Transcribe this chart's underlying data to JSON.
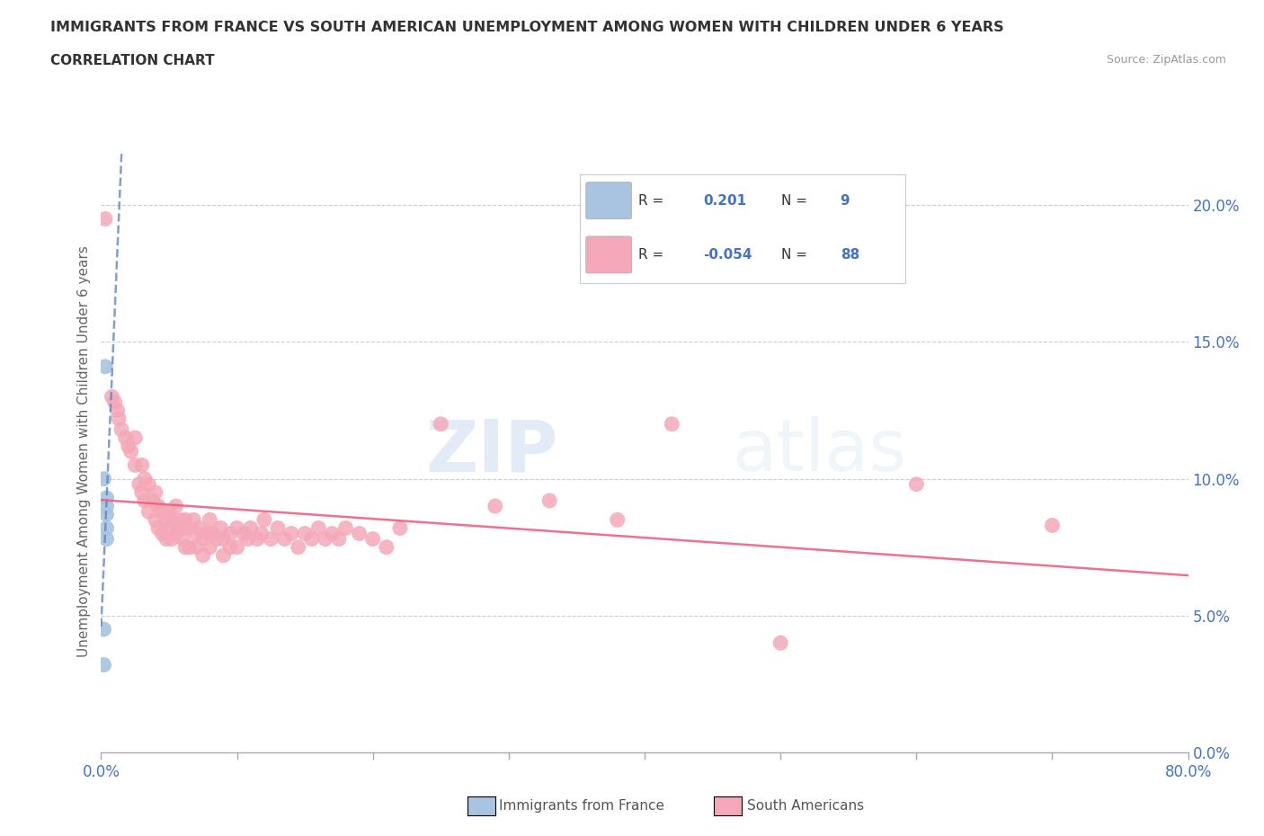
{
  "title": "IMMIGRANTS FROM FRANCE VS SOUTH AMERICAN UNEMPLOYMENT AMONG WOMEN WITH CHILDREN UNDER 6 YEARS",
  "subtitle": "CORRELATION CHART",
  "source": "Source: ZipAtlas.com",
  "ylabel": "Unemployment Among Women with Children Under 6 years",
  "xlim": [
    0.0,
    0.8
  ],
  "ylim": [
    0.0,
    0.22
  ],
  "xtick_vals": [
    0.0,
    0.1,
    0.2,
    0.3,
    0.4,
    0.5,
    0.6,
    0.7,
    0.8
  ],
  "yticks_right": [
    0.0,
    0.05,
    0.1,
    0.15,
    0.2
  ],
  "yticklabels_right": [
    "0.0%",
    "5.0%",
    "10.0%",
    "15.0%",
    "20.0%"
  ],
  "france_color": "#a8c4e0",
  "south_color": "#f4a8b8",
  "france_line_color": "#5580c0",
  "south_line_color": "#f06080",
  "watermark_zip": "ZIP",
  "watermark_atlas": "atlas",
  "legend_r_france": "0.201",
  "legend_n_france": "9",
  "legend_r_south": "-0.054",
  "legend_n_south": "88",
  "france_scatter": [
    [
      0.004,
      0.087
    ],
    [
      0.004,
      0.093
    ],
    [
      0.004,
      0.09
    ],
    [
      0.004,
      0.082
    ],
    [
      0.004,
      0.078
    ],
    [
      0.003,
      0.141
    ],
    [
      0.002,
      0.1
    ],
    [
      0.002,
      0.045
    ],
    [
      0.002,
      0.032
    ]
  ],
  "south_scatter": [
    [
      0.003,
      0.195
    ],
    [
      0.008,
      0.13
    ],
    [
      0.01,
      0.128
    ],
    [
      0.012,
      0.125
    ],
    [
      0.013,
      0.122
    ],
    [
      0.015,
      0.118
    ],
    [
      0.018,
      0.115
    ],
    [
      0.02,
      0.112
    ],
    [
      0.022,
      0.11
    ],
    [
      0.025,
      0.115
    ],
    [
      0.025,
      0.105
    ],
    [
      0.028,
      0.098
    ],
    [
      0.03,
      0.105
    ],
    [
      0.03,
      0.095
    ],
    [
      0.032,
      0.1
    ],
    [
      0.032,
      0.092
    ],
    [
      0.035,
      0.098
    ],
    [
      0.035,
      0.088
    ],
    [
      0.038,
      0.092
    ],
    [
      0.04,
      0.095
    ],
    [
      0.04,
      0.085
    ],
    [
      0.042,
      0.09
    ],
    [
      0.042,
      0.082
    ],
    [
      0.045,
      0.088
    ],
    [
      0.045,
      0.08
    ],
    [
      0.048,
      0.085
    ],
    [
      0.048,
      0.078
    ],
    [
      0.05,
      0.088
    ],
    [
      0.05,
      0.082
    ],
    [
      0.052,
      0.085
    ],
    [
      0.052,
      0.078
    ],
    [
      0.055,
      0.09
    ],
    [
      0.055,
      0.08
    ],
    [
      0.058,
      0.085
    ],
    [
      0.06,
      0.082
    ],
    [
      0.06,
      0.078
    ],
    [
      0.062,
      0.085
    ],
    [
      0.062,
      0.075
    ],
    [
      0.065,
      0.082
    ],
    [
      0.065,
      0.075
    ],
    [
      0.068,
      0.085
    ],
    [
      0.07,
      0.08
    ],
    [
      0.07,
      0.075
    ],
    [
      0.072,
      0.082
    ],
    [
      0.075,
      0.078
    ],
    [
      0.075,
      0.072
    ],
    [
      0.078,
      0.08
    ],
    [
      0.08,
      0.085
    ],
    [
      0.08,
      0.075
    ],
    [
      0.082,
      0.08
    ],
    [
      0.085,
      0.078
    ],
    [
      0.088,
      0.082
    ],
    [
      0.09,
      0.078
    ],
    [
      0.09,
      0.072
    ],
    [
      0.095,
      0.08
    ],
    [
      0.095,
      0.075
    ],
    [
      0.1,
      0.082
    ],
    [
      0.1,
      0.075
    ],
    [
      0.105,
      0.08
    ],
    [
      0.108,
      0.078
    ],
    [
      0.11,
      0.082
    ],
    [
      0.115,
      0.078
    ],
    [
      0.118,
      0.08
    ],
    [
      0.12,
      0.085
    ],
    [
      0.125,
      0.078
    ],
    [
      0.13,
      0.082
    ],
    [
      0.135,
      0.078
    ],
    [
      0.14,
      0.08
    ],
    [
      0.145,
      0.075
    ],
    [
      0.15,
      0.08
    ],
    [
      0.155,
      0.078
    ],
    [
      0.16,
      0.082
    ],
    [
      0.165,
      0.078
    ],
    [
      0.17,
      0.08
    ],
    [
      0.175,
      0.078
    ],
    [
      0.18,
      0.082
    ],
    [
      0.19,
      0.08
    ],
    [
      0.2,
      0.078
    ],
    [
      0.21,
      0.075
    ],
    [
      0.22,
      0.082
    ],
    [
      0.25,
      0.12
    ],
    [
      0.29,
      0.09
    ],
    [
      0.33,
      0.092
    ],
    [
      0.38,
      0.085
    ],
    [
      0.42,
      0.12
    ],
    [
      0.5,
      0.04
    ],
    [
      0.6,
      0.098
    ],
    [
      0.7,
      0.083
    ]
  ]
}
